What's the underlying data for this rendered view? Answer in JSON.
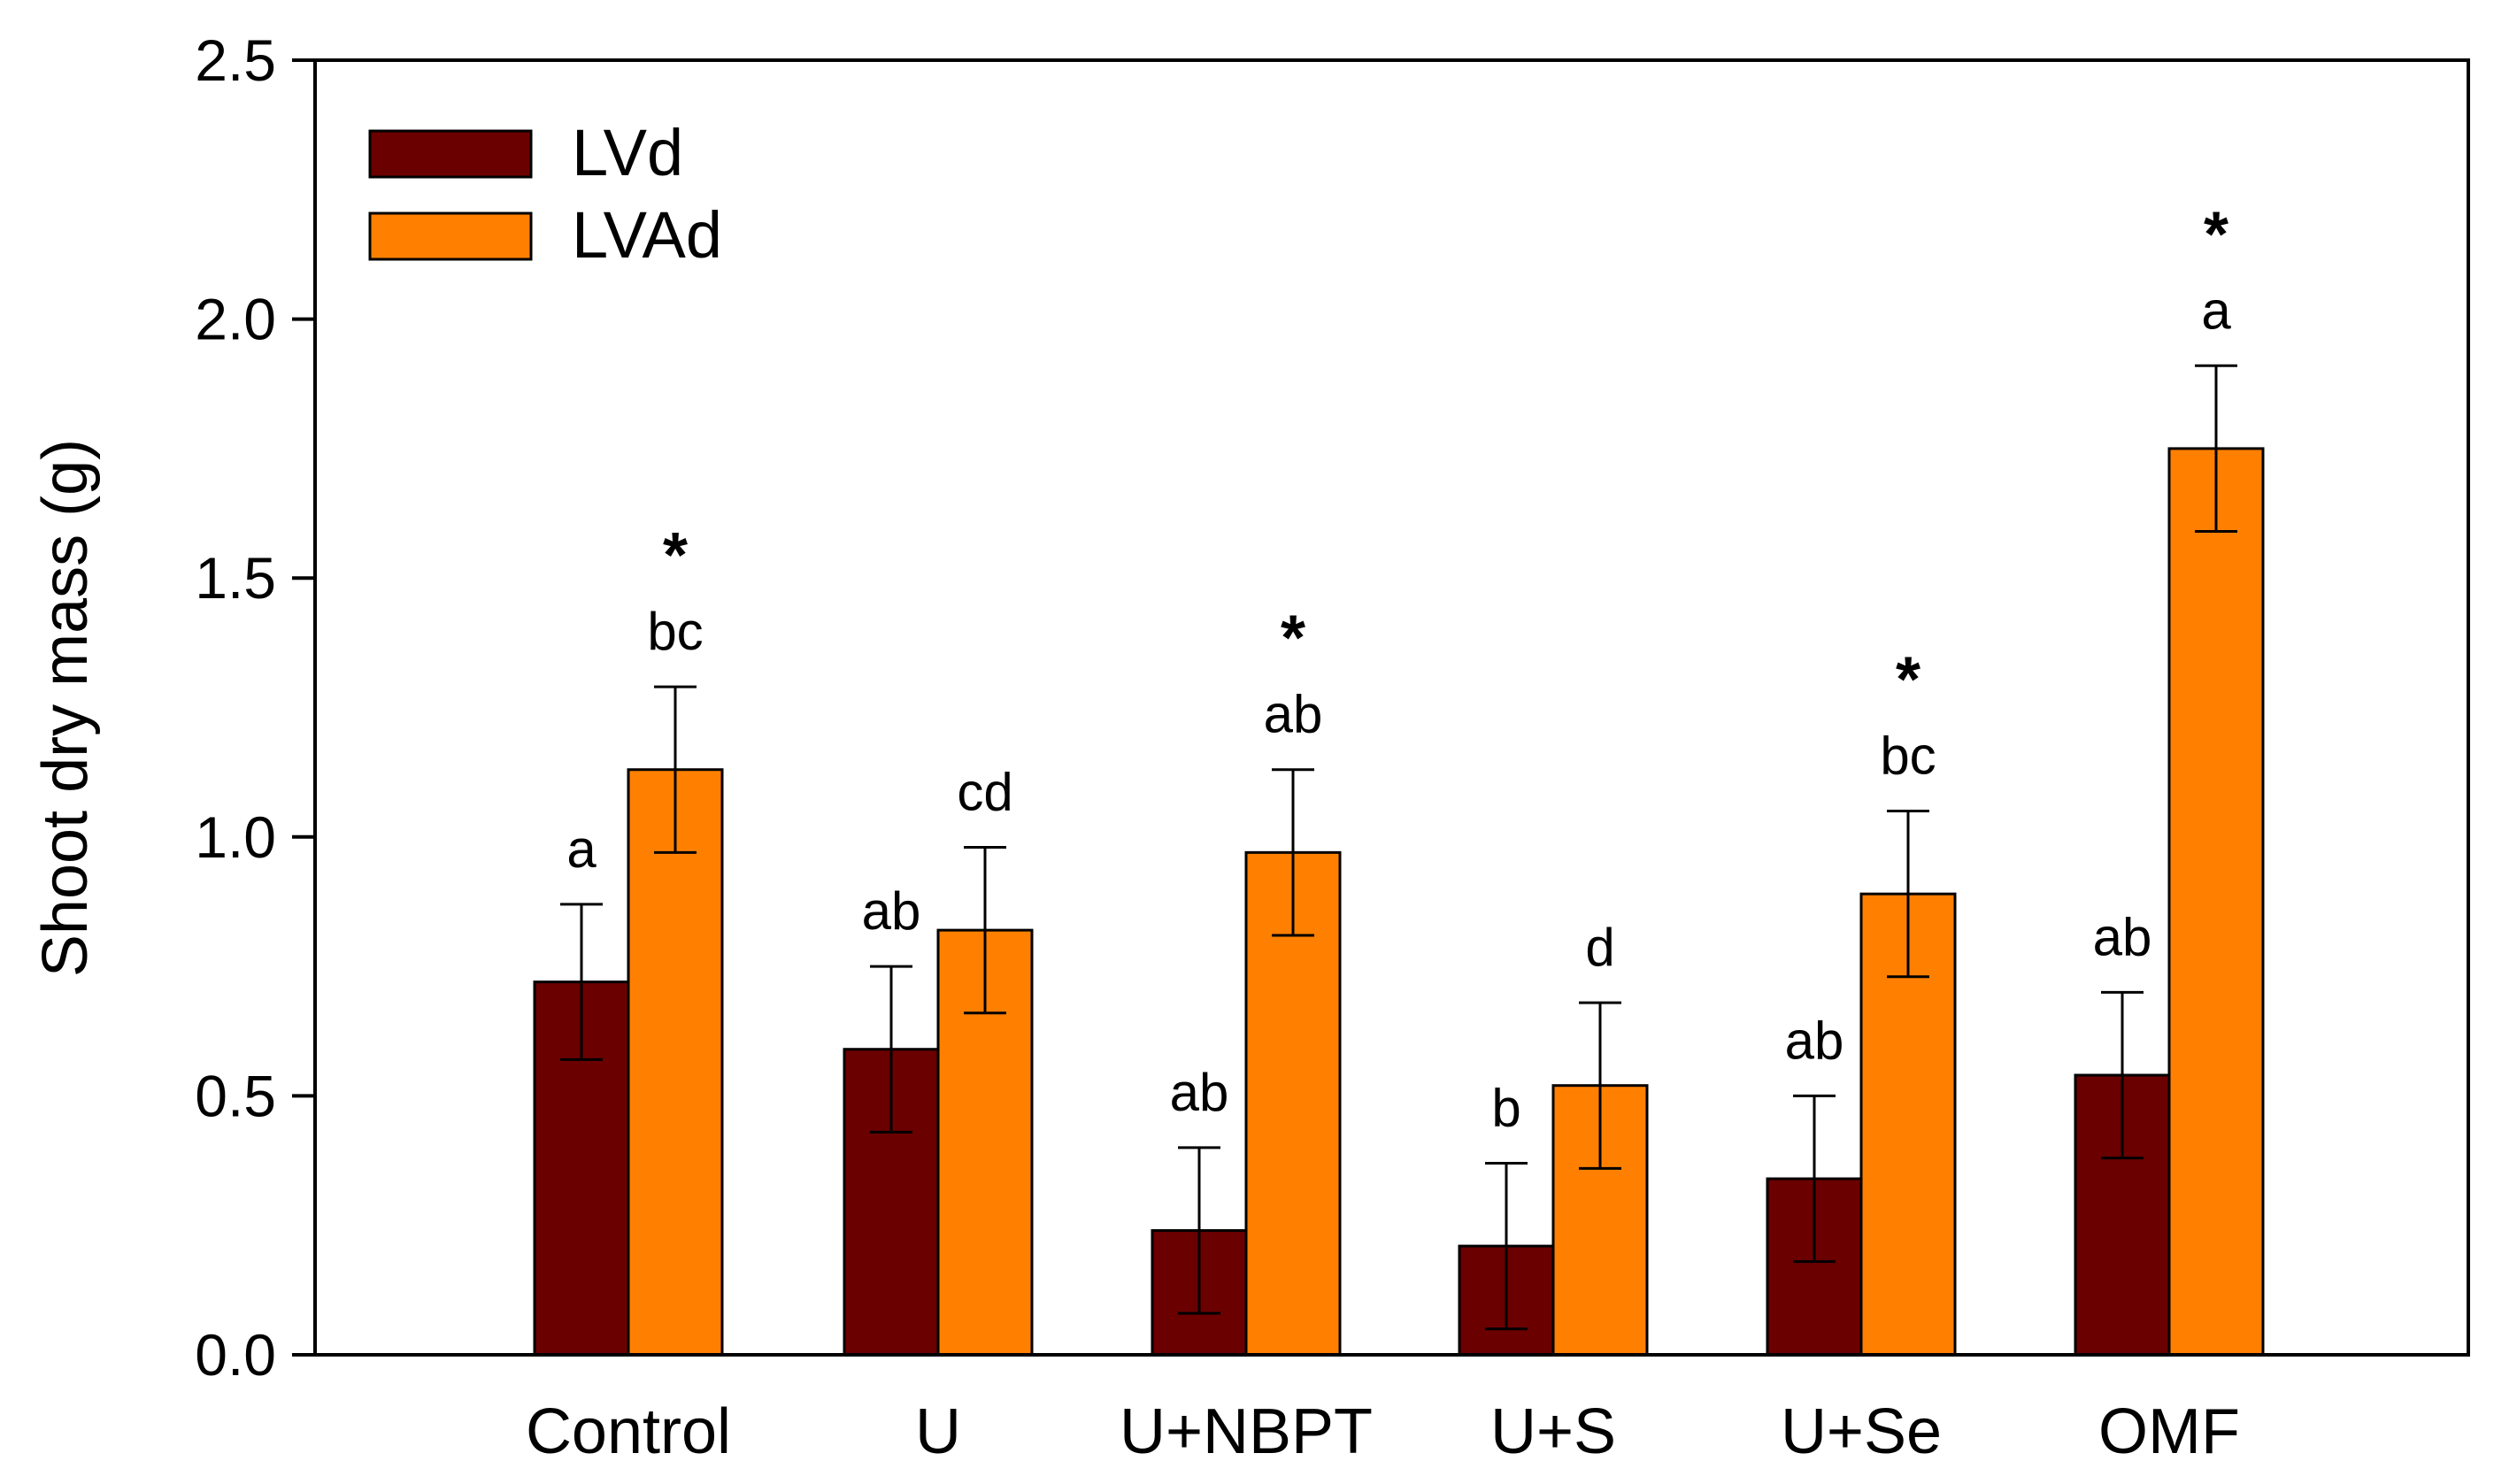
{
  "chart_data": {
    "type": "bar",
    "title": "",
    "xlabel": "",
    "ylabel": "Shoot dry mass (g)",
    "ylim": [
      0,
      2.5
    ],
    "yticks": [
      "0.0",
      "0.5",
      "1.0",
      "1.5",
      "2.0",
      "2.5"
    ],
    "ytick_values": [
      0,
      0.5,
      1.0,
      1.5,
      2.0,
      2.5
    ],
    "categories": [
      "Control",
      "U",
      "U+NBPT",
      "U+S",
      "U+Se",
      "OMF"
    ],
    "legend_position": "top-left",
    "grid": false,
    "series": [
      {
        "name": "LVd",
        "color": "#6b0000",
        "values": [
          0.72,
          0.59,
          0.24,
          0.21,
          0.34,
          0.54
        ],
        "errors": [
          0.15,
          0.16,
          0.16,
          0.16,
          0.16,
          0.16
        ],
        "letters": [
          "a",
          "ab",
          "ab",
          "b",
          "ab",
          "ab"
        ],
        "stars": [
          "",
          "",
          "",
          "",
          "",
          ""
        ]
      },
      {
        "name": "LVAd",
        "color": "#ff8000",
        "values": [
          1.13,
          0.82,
          0.97,
          0.52,
          0.89,
          1.75
        ],
        "errors": [
          0.16,
          0.16,
          0.16,
          0.16,
          0.16,
          0.16
        ],
        "letters": [
          "bc",
          "cd",
          "ab",
          "d",
          "bc",
          "a"
        ],
        "stars": [
          "*",
          "",
          "*",
          "",
          "*",
          "*"
        ]
      }
    ]
  }
}
